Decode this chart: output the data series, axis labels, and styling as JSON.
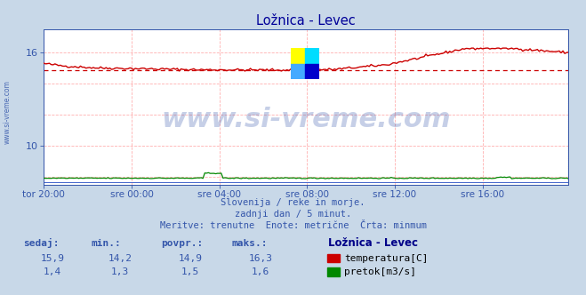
{
  "title": "Ložnica - Levec",
  "title_color": "#000099",
  "bg_color": "#c8d8e8",
  "plot_bg_color": "#ffffff",
  "grid_color": "#ffb0b0",
  "xlabel_ticks": [
    "tor 20:00",
    "sre 00:00",
    "sre 04:00",
    "sre 08:00",
    "sre 12:00",
    "sre 16:00"
  ],
  "xlim": [
    0,
    287
  ],
  "ylim": [
    7.5,
    17.5
  ],
  "ytick_vals": [
    10,
    16
  ],
  "ytick_labels": [
    "10",
    "16"
  ],
  "temp_color": "#cc0000",
  "flow_color": "#008800",
  "avg_line_color": "#cc0000",
  "avg_line_value": 14.9,
  "temp_min": 14.2,
  "temp_max": 16.3,
  "temp_avg": 14.9,
  "temp_current": 15.9,
  "flow_min": 1.3,
  "flow_max": 1.6,
  "flow_avg": 1.5,
  "flow_current": 1.4,
  "watermark": "www.si-vreme.com",
  "watermark_color": "#3355aa",
  "sub_text1": "Slovenija / reke in morje.",
  "sub_text2": "zadnji dan / 5 minut.",
  "sub_text3": "Meritve: trenutne  Enote: metrične  Črta: minmum",
  "sub_text_color": "#3355aa",
  "legend_title": "Ložnica - Levec",
  "legend_color": "#000088",
  "label_sedaj": "sedaj:",
  "label_min": "min.:",
  "label_povpr": "povpr.:",
  "label_maks": "maks.:",
  "label_temp": "temperatura[C]",
  "label_flow": "pretok[m3/s]",
  "label_color": "#3355aa",
  "axis_color": "#3355aa",
  "tick_color": "#3355aa",
  "left_label": "www.si-vreme.com",
  "left_label_color": "#3355aa"
}
